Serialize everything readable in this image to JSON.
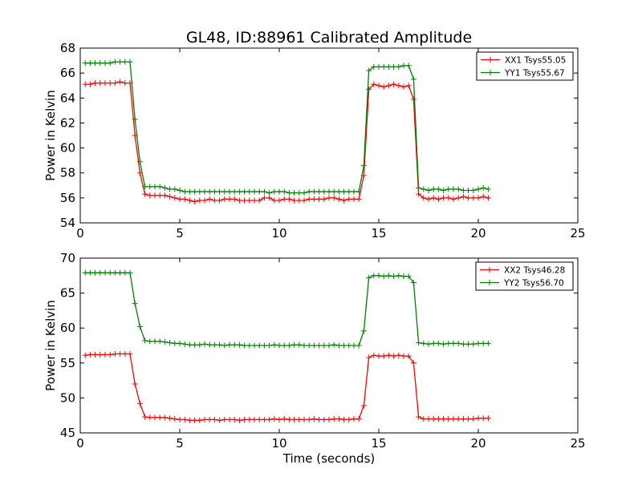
{
  "page": {
    "title": "GL48, ID:88961 Calibrated Amplitude"
  },
  "chart_data": [
    {
      "type": "line",
      "title": "GL48, ID:88961 Calibrated Amplitude",
      "xlabel": "",
      "ylabel": "Power in Kelvin",
      "xlim": [
        0,
        25
      ],
      "ylim": [
        54,
        68
      ],
      "xticks": [
        "0",
        "5",
        "10",
        "15",
        "20",
        "25"
      ],
      "yticks": [
        "54",
        "56",
        "58",
        "60",
        "62",
        "64",
        "66",
        "68"
      ],
      "grid": false,
      "legend_position": "top-right",
      "marker": "+",
      "x": [
        0.25,
        0.5,
        0.75,
        1.0,
        1.25,
        1.5,
        1.75,
        2.0,
        2.25,
        2.5,
        2.75,
        3.0,
        3.25,
        3.5,
        3.75,
        4.0,
        4.25,
        4.5,
        4.75,
        5.0,
        5.25,
        5.5,
        5.75,
        6.0,
        6.25,
        6.5,
        6.75,
        7.0,
        7.25,
        7.5,
        7.75,
        8.0,
        8.25,
        8.5,
        8.75,
        9.0,
        9.25,
        9.5,
        9.75,
        10.0,
        10.25,
        10.5,
        10.75,
        11.0,
        11.25,
        11.5,
        11.75,
        12.0,
        12.25,
        12.5,
        12.75,
        13.0,
        13.25,
        13.5,
        13.75,
        14.0,
        14.25,
        14.5,
        14.75,
        15.0,
        15.25,
        15.5,
        15.75,
        16.0,
        16.25,
        16.5,
        16.75,
        17.0,
        17.25,
        17.5,
        17.75,
        18.0,
        18.25,
        18.5,
        18.75,
        19.0,
        19.25,
        19.5,
        19.75,
        20.0,
        20.25,
        20.5
      ],
      "series": [
        {
          "name": "XX1 Tsys55.05",
          "color": "#ff0000",
          "values": [
            65.1,
            65.1,
            65.2,
            65.2,
            65.2,
            65.2,
            65.2,
            65.3,
            65.2,
            65.2,
            61.0,
            58.0,
            56.3,
            56.2,
            56.2,
            56.2,
            56.2,
            56.1,
            56.0,
            55.9,
            55.9,
            55.8,
            55.7,
            55.8,
            55.8,
            55.9,
            55.8,
            55.8,
            55.9,
            55.9,
            55.9,
            55.8,
            55.8,
            55.8,
            55.8,
            55.8,
            56.0,
            56.0,
            55.8,
            55.8,
            55.9,
            55.9,
            55.8,
            55.8,
            55.8,
            55.9,
            55.9,
            55.9,
            55.9,
            56.0,
            56.0,
            55.9,
            55.8,
            55.9,
            55.9,
            55.9,
            57.8,
            64.7,
            65.1,
            65.0,
            64.9,
            65.0,
            65.1,
            65.0,
            64.9,
            65.0,
            63.9,
            56.3,
            56.0,
            55.9,
            56.0,
            55.9,
            56.0,
            56.0,
            55.9,
            56.0,
            56.1,
            56.0,
            56.0,
            56.0,
            56.1,
            56.0
          ]
        },
        {
          "name": "YY1 Tsys55.67",
          "color": "#008000",
          "values": [
            66.8,
            66.8,
            66.8,
            66.8,
            66.8,
            66.8,
            66.9,
            66.9,
            66.9,
            66.9,
            62.3,
            58.9,
            56.9,
            56.9,
            56.9,
            56.9,
            56.8,
            56.7,
            56.7,
            56.6,
            56.5,
            56.5,
            56.5,
            56.5,
            56.5,
            56.5,
            56.5,
            56.5,
            56.5,
            56.5,
            56.5,
            56.5,
            56.5,
            56.5,
            56.5,
            56.5,
            56.5,
            56.4,
            56.5,
            56.5,
            56.5,
            56.4,
            56.4,
            56.4,
            56.4,
            56.5,
            56.5,
            56.5,
            56.5,
            56.5,
            56.5,
            56.5,
            56.5,
            56.5,
            56.5,
            56.5,
            58.6,
            66.2,
            66.5,
            66.5,
            66.5,
            66.5,
            66.5,
            66.5,
            66.6,
            66.6,
            65.5,
            56.8,
            56.7,
            56.6,
            56.7,
            56.7,
            56.6,
            56.7,
            56.7,
            56.7,
            56.6,
            56.6,
            56.6,
            56.7,
            56.8,
            56.7
          ]
        }
      ]
    },
    {
      "type": "line",
      "title": "",
      "xlabel": "Time (seconds)",
      "ylabel": "Power in Kelvin",
      "xlim": [
        0,
        25
      ],
      "ylim": [
        45,
        70
      ],
      "xticks": [
        "0",
        "5",
        "10",
        "15",
        "20",
        "25"
      ],
      "yticks": [
        "45",
        "50",
        "55",
        "60",
        "65",
        "70"
      ],
      "grid": false,
      "legend_position": "top-right",
      "marker": "+",
      "x": [
        0.25,
        0.5,
        0.75,
        1.0,
        1.25,
        1.5,
        1.75,
        2.0,
        2.25,
        2.5,
        2.75,
        3.0,
        3.25,
        3.5,
        3.75,
        4.0,
        4.25,
        4.5,
        4.75,
        5.0,
        5.25,
        5.5,
        5.75,
        6.0,
        6.25,
        6.5,
        6.75,
        7.0,
        7.25,
        7.5,
        7.75,
        8.0,
        8.25,
        8.5,
        8.75,
        9.0,
        9.25,
        9.5,
        9.75,
        10.0,
        10.25,
        10.5,
        10.75,
        11.0,
        11.25,
        11.5,
        11.75,
        12.0,
        12.25,
        12.5,
        12.75,
        13.0,
        13.25,
        13.5,
        13.75,
        14.0,
        14.25,
        14.5,
        14.75,
        15.0,
        15.25,
        15.5,
        15.75,
        16.0,
        16.25,
        16.5,
        16.75,
        17.0,
        17.25,
        17.5,
        17.75,
        18.0,
        18.25,
        18.5,
        18.75,
        19.0,
        19.25,
        19.5,
        19.75,
        20.0,
        20.25,
        20.5
      ],
      "series": [
        {
          "name": "XX2 Tsys46.28",
          "color": "#ff0000",
          "values": [
            56.1,
            56.2,
            56.2,
            56.2,
            56.2,
            56.2,
            56.3,
            56.3,
            56.3,
            56.3,
            52.0,
            49.2,
            47.3,
            47.2,
            47.2,
            47.2,
            47.2,
            47.1,
            47.0,
            46.9,
            46.9,
            46.8,
            46.8,
            46.8,
            46.9,
            46.9,
            46.9,
            46.8,
            46.9,
            46.9,
            46.9,
            46.8,
            46.9,
            46.9,
            46.9,
            46.9,
            46.9,
            46.9,
            47.0,
            46.9,
            47.0,
            46.9,
            46.9,
            46.9,
            46.9,
            46.9,
            47.0,
            46.9,
            46.9,
            46.9,
            47.0,
            47.0,
            46.9,
            46.9,
            47.0,
            47.0,
            48.9,
            55.8,
            56.1,
            56.0,
            56.0,
            56.1,
            56.0,
            56.1,
            56.0,
            56.0,
            55.0,
            47.3,
            47.0,
            47.0,
            47.0,
            47.0,
            47.0,
            47.0,
            47.0,
            47.0,
            47.0,
            47.0,
            47.0,
            47.1,
            47.1,
            47.1
          ]
        },
        {
          "name": "YY2 Tsys56.70",
          "color": "#008000",
          "values": [
            67.9,
            67.9,
            67.9,
            67.9,
            67.9,
            67.9,
            67.9,
            67.9,
            67.9,
            67.9,
            63.5,
            60.2,
            58.2,
            58.1,
            58.1,
            58.1,
            58.0,
            57.9,
            57.8,
            57.8,
            57.7,
            57.6,
            57.6,
            57.6,
            57.7,
            57.6,
            57.6,
            57.6,
            57.5,
            57.6,
            57.6,
            57.6,
            57.5,
            57.5,
            57.5,
            57.5,
            57.5,
            57.5,
            57.6,
            57.5,
            57.5,
            57.5,
            57.6,
            57.6,
            57.5,
            57.5,
            57.5,
            57.5,
            57.5,
            57.5,
            57.6,
            57.5,
            57.5,
            57.5,
            57.5,
            57.5,
            59.6,
            67.2,
            67.5,
            67.5,
            67.4,
            67.5,
            67.4,
            67.5,
            67.4,
            67.4,
            66.5,
            57.9,
            57.8,
            57.7,
            57.8,
            57.8,
            57.7,
            57.8,
            57.8,
            57.8,
            57.7,
            57.7,
            57.7,
            57.8,
            57.8,
            57.8
          ]
        }
      ]
    }
  ]
}
